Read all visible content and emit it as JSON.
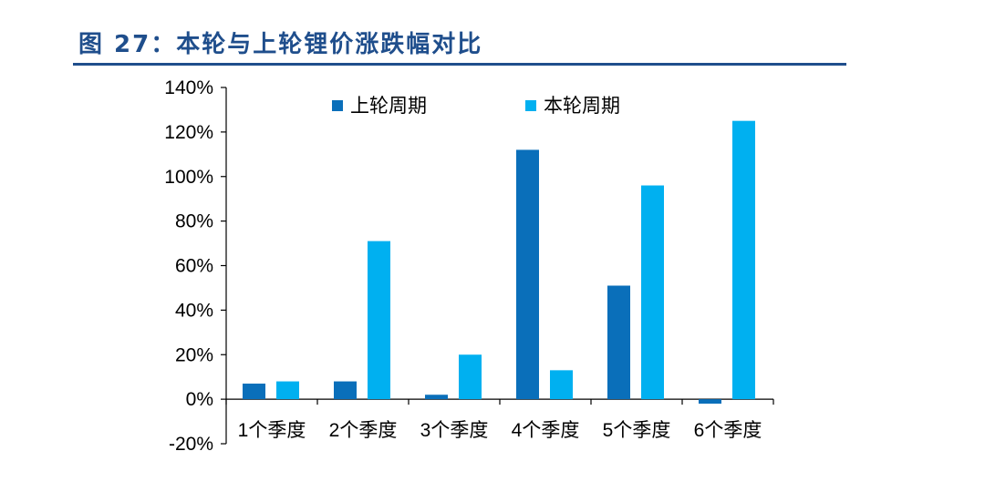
{
  "figure_title": "图 27：本轮与上轮锂价涨跌幅对比",
  "colors": {
    "title": "#1f4e8c",
    "series_previous": "#0a6fba",
    "series_current": "#00b0f0"
  },
  "chart_data": {
    "type": "bar",
    "title": "",
    "xlabel": "",
    "ylabel": "",
    "categories": [
      "1个季度",
      "2个季度",
      "3个季度",
      "4个季度",
      "5个季度",
      "6个季度"
    ],
    "series": [
      {
        "name": "上轮周期",
        "values": [
          7,
          8,
          2,
          112,
          51,
          -2
        ]
      },
      {
        "name": "本轮周期",
        "values": [
          8,
          71,
          20,
          13,
          96,
          125
        ]
      }
    ],
    "ylim": [
      -20,
      140
    ],
    "yticks": [
      -20,
      0,
      20,
      40,
      60,
      80,
      100,
      120,
      140
    ],
    "ytick_labels": [
      "-20%",
      "0%",
      "20%",
      "40%",
      "60%",
      "80%",
      "100%",
      "120%",
      "140%"
    ],
    "legend_position": "top",
    "grid": false
  }
}
